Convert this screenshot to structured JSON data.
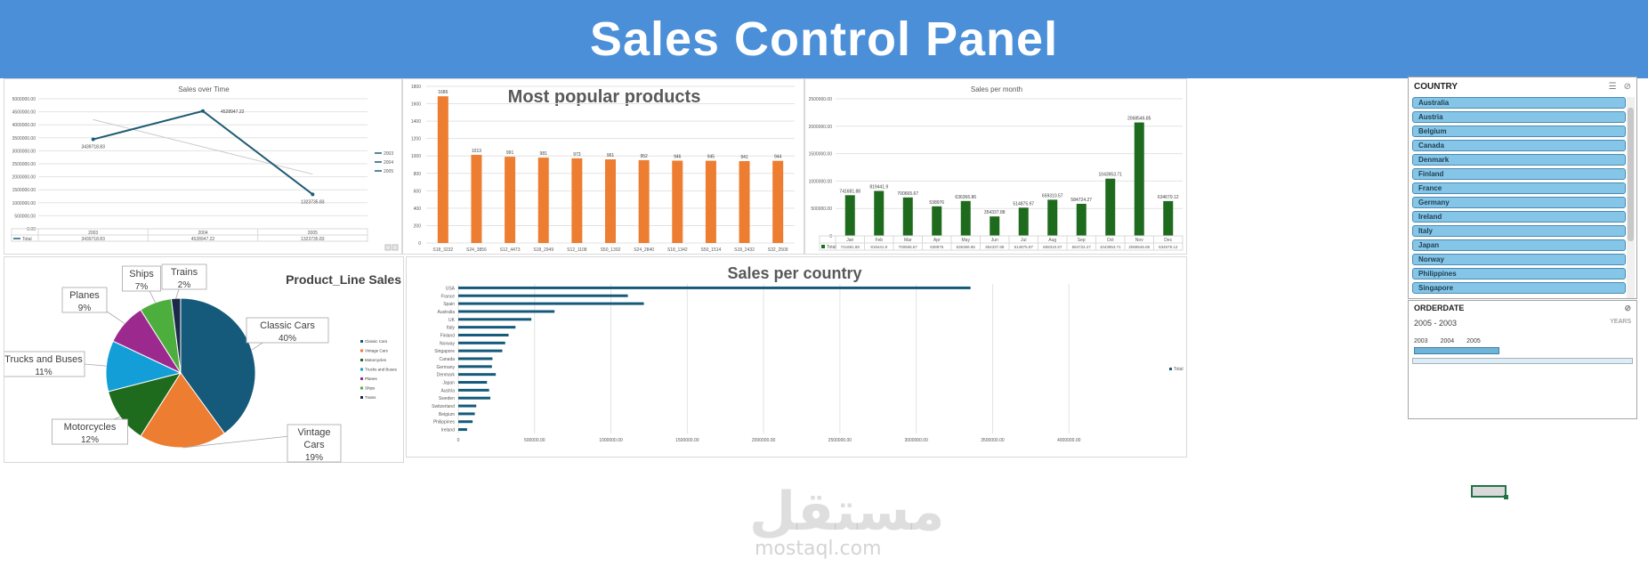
{
  "banner": {
    "title": "Sales Control Panel"
  },
  "sales_over_time": {
    "chart_data": {
      "type": "line",
      "title": "Sales over Time",
      "categories": [
        "2003",
        "2004",
        "2005"
      ],
      "series": [
        {
          "name": "Total",
          "values": [
            3439718.83,
            4528947.22,
            1323735.83
          ]
        }
      ],
      "data_labels": [
        "3439718.83",
        "4528947.22",
        "1323735.83"
      ],
      "table_values": [
        "3439718.83",
        "4528947.22",
        "1323735.83"
      ],
      "ylim": [
        0,
        5000000
      ],
      "yticks": [
        "0.00",
        "500000.00",
        "1000000.00",
        "1500000.00",
        "2000000.00",
        "2500000.00",
        "3000000.00",
        "3500000.00",
        "4000000.00",
        "4500000.00",
        "5000000.00"
      ],
      "legend": [
        "2003",
        "2004",
        "2005"
      ],
      "legend_position": "right",
      "table_row_label": "Total",
      "grid": true
    }
  },
  "popular_products": {
    "chart_data": {
      "type": "bar",
      "title": "Most popular products",
      "categories": [
        "S18_3232",
        "S24_3856",
        "S12_4473",
        "S18_2949",
        "S12_1108",
        "S50_1392",
        "S24_2840",
        "S18_1342",
        "S50_1514",
        "S18_2432",
        "S32_2509"
      ],
      "values": [
        1686,
        1013,
        991,
        981,
        973,
        961,
        952,
        946,
        945,
        941,
        944
      ],
      "ylim": [
        0,
        1800
      ],
      "yticks": [
        "0",
        "200",
        "400",
        "600",
        "800",
        "1000",
        "1200",
        "1400",
        "1600",
        "1800"
      ],
      "color": "#ed7d31",
      "grid": true
    }
  },
  "sales_per_month": {
    "chart_data": {
      "type": "bar",
      "title": "Sales per month",
      "categories": [
        "Jan",
        "Feb",
        "Mar",
        "Apr",
        "May",
        "Jun",
        "Jul",
        "Aug",
        "Sep",
        "Oct",
        "Nov",
        "Dec"
      ],
      "values": [
        741681.88,
        819441.9,
        700665.67,
        538976,
        636366.86,
        354337.88,
        514875.97,
        659310.57,
        584724.27,
        1043953.71,
        2068546.85,
        634679.12
      ],
      "data_labels": [
        "741681.88",
        "819441.9",
        "700665.67",
        "538976",
        "636366.86",
        "354337.88",
        "514875.97",
        "659310.57",
        "584724.27",
        "1043953.71",
        "2068546.85",
        "634679.12"
      ],
      "table_values": [
        "741681.88",
        "819441.9",
        "700665.67",
        "538976",
        "636366.86",
        "354337.88",
        "514875.97",
        "659310.57",
        "584724.27",
        "1043953.71",
        "2068546.85",
        "634679.12"
      ],
      "table_row_label": "Total",
      "ylim": [
        0,
        2500000
      ],
      "yticks": [
        "0",
        "500000.00",
        "1000000.00",
        "1500000.00",
        "2000000.00",
        "2500000.00"
      ],
      "color": "#1e6b1e",
      "grid": true
    }
  },
  "product_line_sales": {
    "chart_data": {
      "type": "pie",
      "title": "Product_Line Sales",
      "slices": [
        {
          "name": "Classic Cars",
          "value": 40,
          "label": "40%",
          "color": "#155a7a"
        },
        {
          "name": "Vintage Cars",
          "value": 19,
          "label": "19%",
          "color": "#ed7d31"
        },
        {
          "name": "Motorcycles",
          "value": 12,
          "label": "12%",
          "color": "#1e6b1e"
        },
        {
          "name": "Trucks and Buses",
          "value": 11,
          "label": "11%",
          "color": "#149ed8"
        },
        {
          "name": "Planes",
          "value": 9,
          "label": "9%",
          "color": "#9c2a8e"
        },
        {
          "name": "Ships",
          "value": 7,
          "label": "7%",
          "color": "#4cae3c"
        },
        {
          "name": "Trains",
          "value": 2,
          "label": "2%",
          "color": "#1a2b4a"
        }
      ],
      "legend": [
        "Classic Cars",
        "Vintage Cars",
        "Motorcycles",
        "Trucks and Buses",
        "Planes",
        "Ships",
        "Trains"
      ],
      "legend_position": "right"
    }
  },
  "sales_per_country": {
    "chart_data": {
      "type": "bar",
      "orientation": "horizontal",
      "title": "Sales per country",
      "categories": [
        "USA",
        "France",
        "Spain",
        "Australia",
        "UK",
        "Italy",
        "Finland",
        "Norway",
        "Singapore",
        "Canada",
        "Germany",
        "Denmark",
        "Japan",
        "Austria",
        "Sweden",
        "Switzerland",
        "Belgium",
        "Philippines",
        "Ireland"
      ],
      "values": [
        3355575.69,
        1110916.52,
        1215686.92,
        630623.1,
        478880.46,
        374674.31,
        329581.91,
        307463.7,
        288488.41,
        224078.56,
        220472.09,
        245637.15,
        188167.81,
        202062.53,
        210014.21,
        117713.56,
        108412.62,
        94015.73,
        57756.43
      ],
      "xlim": [
        0,
        4500000
      ],
      "xticks": [
        "0",
        "500000.00",
        "1000000.00",
        "1500000.00",
        "2000000.00",
        "2500000.00",
        "3000000.00",
        "3500000.00",
        "4000000.00"
      ],
      "legend": [
        "Total"
      ],
      "legend_position": "right",
      "color": "#155a7a",
      "grid": true
    }
  },
  "country_slicer": {
    "title": "COUNTRY",
    "items": [
      "Australia",
      "Austria",
      "Belgium",
      "Canada",
      "Denmark",
      "Finland",
      "France",
      "Germany",
      "Ireland",
      "Italy",
      "Japan",
      "Norway",
      "Philippines",
      "Singapore"
    ]
  },
  "date_timeline": {
    "title": "ORDERDATE",
    "range": "2005 - 2003",
    "unit": "YEARS",
    "years": [
      "2003",
      "2004",
      "2005"
    ]
  },
  "watermark": {
    "text": "مستقل",
    "sub": "mostaql.com"
  }
}
